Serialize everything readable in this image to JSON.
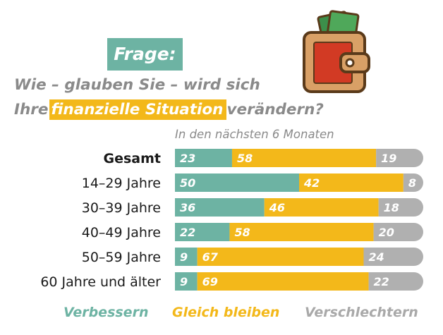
{
  "header": {
    "badge": "Frage:",
    "question_line1": "Wie – glauben Sie – wird sich",
    "question_line2_pre": "Ihre",
    "question_line2_highlight": "finanzielle Situation",
    "question_line2_post": "verändern?",
    "subtitle": "In den nächsten 6 Monaten"
  },
  "icons": {
    "wallet": "wallet-icon"
  },
  "chart_data": {
    "type": "bar",
    "stacked": true,
    "orientation": "horizontal",
    "categories": [
      "Gesamt",
      "14–29 Jahre",
      "30–39 Jahre",
      "40–49 Jahre",
      "50–59 Jahre",
      "60 Jahre und älter"
    ],
    "series": [
      {
        "name": "Verbessern",
        "color": "#6db3a3",
        "values": [
          23,
          50,
          36,
          22,
          9,
          9
        ]
      },
      {
        "name": "Gleich bleiben",
        "color": "#f3b81a",
        "values": [
          58,
          42,
          46,
          58,
          67,
          69
        ]
      },
      {
        "name": "Verschlechtern",
        "color": "#b0b0b0",
        "values": [
          19,
          8,
          18,
          20,
          24,
          22
        ]
      }
    ],
    "xlim": [
      0,
      100
    ],
    "legend_position": "bottom"
  }
}
